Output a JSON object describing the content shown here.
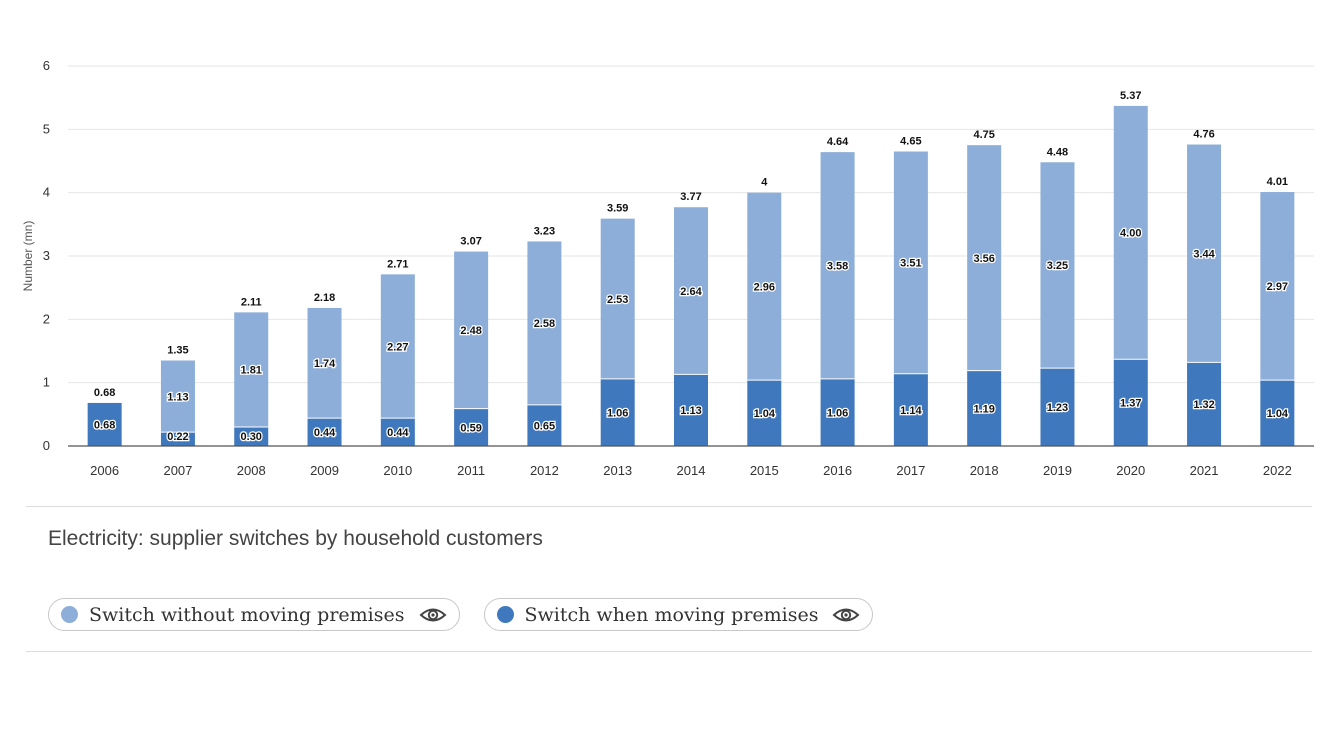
{
  "chart_data": {
    "type": "bar",
    "stacked": true,
    "title": "Electricity: supplier switches by household customers",
    "xlabel": "",
    "ylabel": "Number (mn)",
    "ylim": [
      0,
      6
    ],
    "yticks": [
      0,
      1,
      2,
      3,
      4,
      5,
      6
    ],
    "grid": true,
    "legend_position": "bottom-left",
    "categories": [
      "2006",
      "2007",
      "2008",
      "2009",
      "2010",
      "2011",
      "2012",
      "2013",
      "2014",
      "2015",
      "2016",
      "2017",
      "2018",
      "2019",
      "2020",
      "2021",
      "2022"
    ],
    "series": [
      {
        "name": "Switch when moving premises",
        "color": "#3f78bd",
        "values": [
          0.68,
          0.22,
          0.3,
          0.44,
          0.44,
          0.59,
          0.65,
          1.06,
          1.13,
          1.04,
          1.06,
          1.14,
          1.19,
          1.23,
          1.37,
          1.32,
          1.04
        ],
        "labels": [
          "0.68",
          "0.22",
          "0.30",
          "0.44",
          "0.44",
          "0.59",
          "0.65",
          "1.06",
          "1.13",
          "1.04",
          "1.06",
          "1.14",
          "1.19",
          "1.23",
          "1.37",
          "1.32",
          "1.04"
        ]
      },
      {
        "name": "Switch without moving premises",
        "color": "#8caed8",
        "values": [
          0,
          1.13,
          1.81,
          1.74,
          2.27,
          2.48,
          2.58,
          2.53,
          2.64,
          2.96,
          3.58,
          3.51,
          3.56,
          3.25,
          4.0,
          3.44,
          2.97
        ],
        "labels": [
          "",
          "1.13",
          "1.81",
          "1.74",
          "2.27",
          "2.48",
          "2.58",
          "2.53",
          "2.64",
          "2.96",
          "3.58",
          "3.51",
          "3.56",
          "3.25",
          "4.00",
          "3.44",
          "2.97"
        ]
      }
    ],
    "totals": [
      0.68,
      1.35,
      2.11,
      2.18,
      2.71,
      3.07,
      3.23,
      3.59,
      3.77,
      4,
      4.64,
      4.65,
      4.75,
      4.48,
      5.37,
      4.76,
      4.01
    ],
    "total_labels": [
      "0.68",
      "1.35",
      "2.11",
      "2.18",
      "2.71",
      "3.07",
      "3.23",
      "3.59",
      "3.77",
      "4",
      "4.64",
      "4.65",
      "4.75",
      "4.48",
      "5.37",
      "4.76",
      "4.01"
    ]
  },
  "legend": {
    "items": [
      {
        "label": "Switch without moving premises",
        "color": "#8caed8",
        "icon": "eye-icon"
      },
      {
        "label": "Switch when moving premises",
        "color": "#3f78bd",
        "icon": "eye-icon"
      }
    ]
  }
}
